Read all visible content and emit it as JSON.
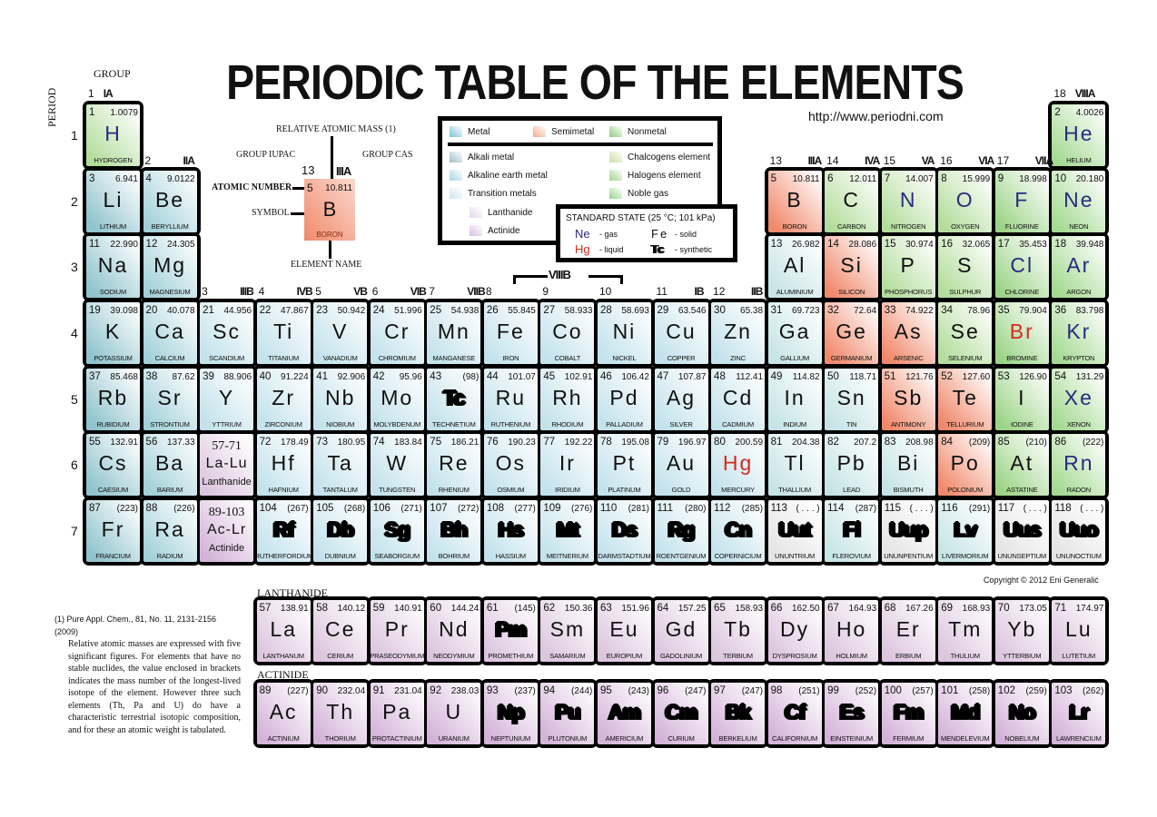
{
  "title": "PERIODIC TABLE OF THE ELEMENTS",
  "url": "http://www.periodni.com",
  "group_heading": "GROUP",
  "period_heading": "PERIOD",
  "periods": [
    "1",
    "2",
    "3",
    "4",
    "5",
    "6",
    "7"
  ],
  "groups": [
    {
      "iupac": "1",
      "cas": "IA"
    },
    {
      "iupac": "2",
      "cas": "IIA"
    },
    {
      "iupac": "3",
      "cas": "IIIB"
    },
    {
      "iupac": "4",
      "cas": "IVB"
    },
    {
      "iupac": "5",
      "cas": "VB"
    },
    {
      "iupac": "6",
      "cas": "VIB"
    },
    {
      "iupac": "7",
      "cas": "VIIB"
    },
    {
      "iupac": "8",
      "cas": ""
    },
    {
      "iupac": "9",
      "cas": ""
    },
    {
      "iupac": "10",
      "cas": ""
    },
    {
      "iupac": "11",
      "cas": "IB"
    },
    {
      "iupac": "12",
      "cas": "IIB"
    },
    {
      "iupac": "13",
      "cas": "IIIA"
    },
    {
      "iupac": "14",
      "cas": "IVA"
    },
    {
      "iupac": "15",
      "cas": "VA"
    },
    {
      "iupac": "16",
      "cas": "VIA"
    },
    {
      "iupac": "17",
      "cas": "VIIA"
    },
    {
      "iupac": "18",
      "cas": "VIIIA"
    }
  ],
  "group_8_10_cas": "VIIIB",
  "key": {
    "mass_label": "RELATIVE ATOMIC MASS (1)",
    "iupac_label": "GROUP IUPAC",
    "cas_label": "GROUP CAS",
    "number_label": "ATOMIC NUMBER",
    "symbol_label": "SYMBOL",
    "name_label": "ELEMENT NAME",
    "sample": {
      "group_iupac": "13",
      "group_cas": "IIIA",
      "number": "5",
      "mass": "10.811",
      "symbol": "B",
      "name": "BORON"
    }
  },
  "legend": {
    "items": [
      {
        "label": "Metal",
        "color": "#7cc3d6"
      },
      {
        "label": "Semimetal",
        "color": "#f4a98e"
      },
      {
        "label": "Nonmetal",
        "color": "#8ccc7a"
      },
      {
        "label": "Alkali metal",
        "color": "#9fbfc9"
      },
      {
        "label": "Alkaline earth metal",
        "color": "#a9d6e2"
      },
      {
        "label": "Transition metals",
        "color": "#cfe6ee"
      },
      {
        "label": "Lanthanide",
        "color": "#e6d6ea"
      },
      {
        "label": "Actinide",
        "color": "#d9bfe0"
      },
      {
        "label": "Chalcogens element",
        "color": "#c9dfa0"
      },
      {
        "label": "Halogens element",
        "color": "#a4d38f"
      },
      {
        "label": "Noble gas",
        "color": "#9bd48c"
      }
    ]
  },
  "standard_state": {
    "title": "STANDARD STATE (25 °C; 101 kPa)",
    "gas_sym": "Ne",
    "gas": "- gas",
    "solid_sym": "Fe",
    "solid": "- solid",
    "liquid_sym": "Hg",
    "liquid": "- liquid",
    "synth_sym": "Tc",
    "synth": "- synthetic"
  },
  "colors": {
    "alk": "#8fc3cd",
    "ae": "#a3d1da",
    "tm": "#c3e2ec",
    "pt": "#c6e4e6",
    "sm": "#f0896b",
    "nm": "#b3dd9c",
    "hal": "#9cd487",
    "nob": "#a5da93",
    "lan": "#dcc5de",
    "act": "#d4b3d9",
    "unk": "#e4e4e4"
  },
  "placeholders": [
    {
      "range": "57-71",
      "symbols": "La-Lu",
      "label": "Lanthanide"
    },
    {
      "range": "89-103",
      "symbols": "Ac-Lr",
      "label": "Actinide"
    }
  ],
  "lanthanide_label": "LANTHANIDE",
  "actinide_label": "ACTINIDE",
  "copyright": "Copyright © 2012 Eni Generalić",
  "footnote": {
    "ref": "(1)",
    "citation": "Pure Appl. Chem., 81, No. 11, 2131-2156 (2009)",
    "text": "Relative atomic masses are expressed with five significant figures. For elements that have no stable nuclides, the value enclosed in brackets indicates the mass number of the longest-lived isotope of the element. However three such elements (Th, Pa and U) do have a characteristic terrestrial isotopic composition, and for these an atomic weight is tabulated."
  },
  "elements": [
    {
      "n": "1",
      "s": "H",
      "name": "HYDROGEN",
      "m": "1.0079",
      "c": "nm",
      "st": "g"
    },
    {
      "n": "2",
      "s": "He",
      "name": "HELIUM",
      "m": "4.0026",
      "c": "nob",
      "st": "g"
    },
    {
      "n": "3",
      "s": "Li",
      "name": "LITHIUM",
      "m": "6.941",
      "c": "alk",
      "st": "s"
    },
    {
      "n": "4",
      "s": "Be",
      "name": "BERYLLIUM",
      "m": "9.0122",
      "c": "ae",
      "st": "s"
    },
    {
      "n": "5",
      "s": "B",
      "name": "BORON",
      "m": "10.811",
      "c": "sm",
      "st": "s"
    },
    {
      "n": "6",
      "s": "C",
      "name": "CARBON",
      "m": "12.011",
      "c": "nm",
      "st": "s"
    },
    {
      "n": "7",
      "s": "N",
      "name": "NITROGEN",
      "m": "14.007",
      "c": "nm",
      "st": "g"
    },
    {
      "n": "8",
      "s": "O",
      "name": "OXYGEN",
      "m": "15.999",
      "c": "nm",
      "st": "g"
    },
    {
      "n": "9",
      "s": "F",
      "name": "FLUORINE",
      "m": "18.998",
      "c": "hal",
      "st": "g"
    },
    {
      "n": "10",
      "s": "Ne",
      "name": "NEON",
      "m": "20.180",
      "c": "nob",
      "st": "g"
    },
    {
      "n": "11",
      "s": "Na",
      "name": "SODIUM",
      "m": "22.990",
      "c": "alk",
      "st": "s"
    },
    {
      "n": "12",
      "s": "Mg",
      "name": "MAGNESIUM",
      "m": "24.305",
      "c": "ae",
      "st": "s"
    },
    {
      "n": "13",
      "s": "Al",
      "name": "ALUMINIUM",
      "m": "26.982",
      "c": "pt",
      "st": "s"
    },
    {
      "n": "14",
      "s": "Si",
      "name": "SILICON",
      "m": "28.086",
      "c": "sm",
      "st": "s"
    },
    {
      "n": "15",
      "s": "P",
      "name": "PHOSPHORUS",
      "m": "30.974",
      "c": "nm",
      "st": "s"
    },
    {
      "n": "16",
      "s": "S",
      "name": "SULPHUR",
      "m": "32.065",
      "c": "nm",
      "st": "s"
    },
    {
      "n": "17",
      "s": "Cl",
      "name": "CHLORINE",
      "m": "35.453",
      "c": "hal",
      "st": "g"
    },
    {
      "n": "18",
      "s": "Ar",
      "name": "ARGON",
      "m": "39.948",
      "c": "nob",
      "st": "g"
    },
    {
      "n": "19",
      "s": "K",
      "name": "POTASSIUM",
      "m": "39.098",
      "c": "alk",
      "st": "s"
    },
    {
      "n": "20",
      "s": "Ca",
      "name": "CALCIUM",
      "m": "40.078",
      "c": "ae",
      "st": "s"
    },
    {
      "n": "21",
      "s": "Sc",
      "name": "SCANDIUM",
      "m": "44.956",
      "c": "tm",
      "st": "s"
    },
    {
      "n": "22",
      "s": "Ti",
      "name": "TITANIUM",
      "m": "47.867",
      "c": "tm",
      "st": "s"
    },
    {
      "n": "23",
      "s": "V",
      "name": "VANADIUM",
      "m": "50.942",
      "c": "tm",
      "st": "s"
    },
    {
      "n": "24",
      "s": "Cr",
      "name": "CHROMIUM",
      "m": "51.996",
      "c": "tm",
      "st": "s"
    },
    {
      "n": "25",
      "s": "Mn",
      "name": "MANGANESE",
      "m": "54.938",
      "c": "tm",
      "st": "s"
    },
    {
      "n": "26",
      "s": "Fe",
      "name": "IRON",
      "m": "55.845",
      "c": "tm",
      "st": "s"
    },
    {
      "n": "27",
      "s": "Co",
      "name": "COBALT",
      "m": "58.933",
      "c": "tm",
      "st": "s"
    },
    {
      "n": "28",
      "s": "Ni",
      "name": "NICKEL",
      "m": "58.693",
      "c": "tm",
      "st": "s"
    },
    {
      "n": "29",
      "s": "Cu",
      "name": "COPPER",
      "m": "63.546",
      "c": "tm",
      "st": "s"
    },
    {
      "n": "30",
      "s": "Zn",
      "name": "ZINC",
      "m": "65.38",
      "c": "tm",
      "st": "s"
    },
    {
      "n": "31",
      "s": "Ga",
      "name": "GALLIUM",
      "m": "69.723",
      "c": "pt",
      "st": "s"
    },
    {
      "n": "32",
      "s": "Ge",
      "name": "GERMANIUM",
      "m": "72.64",
      "c": "sm",
      "st": "s"
    },
    {
      "n": "33",
      "s": "As",
      "name": "ARSENIC",
      "m": "74.922",
      "c": "sm",
      "st": "s"
    },
    {
      "n": "34",
      "s": "Se",
      "name": "SELENIUM",
      "m": "78.96",
      "c": "nm",
      "st": "s"
    },
    {
      "n": "35",
      "s": "Br",
      "name": "BROMINE",
      "m": "79.904",
      "c": "hal",
      "st": "l"
    },
    {
      "n": "36",
      "s": "Kr",
      "name": "KRYPTON",
      "m": "83.798",
      "c": "nob",
      "st": "g"
    },
    {
      "n": "37",
      "s": "Rb",
      "name": "RUBIDIUM",
      "m": "85.468",
      "c": "alk",
      "st": "s"
    },
    {
      "n": "38",
      "s": "Sr",
      "name": "STRONTIUM",
      "m": "87.62",
      "c": "ae",
      "st": "s"
    },
    {
      "n": "39",
      "s": "Y",
      "name": "YTTRIUM",
      "m": "88.906",
      "c": "tm",
      "st": "s"
    },
    {
      "n": "40",
      "s": "Zr",
      "name": "ZIRCONIUM",
      "m": "91.224",
      "c": "tm",
      "st": "s"
    },
    {
      "n": "41",
      "s": "Nb",
      "name": "NIOBIUM",
      "m": "92.906",
      "c": "tm",
      "st": "s"
    },
    {
      "n": "42",
      "s": "Mo",
      "name": "MOLYBDENUM",
      "m": "95.96",
      "c": "tm",
      "st": "s"
    },
    {
      "n": "43",
      "s": "Tc",
      "name": "TECHNETIUM",
      "m": "(98)",
      "c": "tm",
      "st": "x"
    },
    {
      "n": "44",
      "s": "Ru",
      "name": "RUTHENIUM",
      "m": "101.07",
      "c": "tm",
      "st": "s"
    },
    {
      "n": "45",
      "s": "Rh",
      "name": "RHODIUM",
      "m": "102.91",
      "c": "tm",
      "st": "s"
    },
    {
      "n": "46",
      "s": "Pd",
      "name": "PALLADIUM",
      "m": "106.42",
      "c": "tm",
      "st": "s"
    },
    {
      "n": "47",
      "s": "Ag",
      "name": "SILVER",
      "m": "107.87",
      "c": "tm",
      "st": "s"
    },
    {
      "n": "48",
      "s": "Cd",
      "name": "CADMIUM",
      "m": "112.41",
      "c": "tm",
      "st": "s"
    },
    {
      "n": "49",
      "s": "In",
      "name": "INDIUM",
      "m": "114.82",
      "c": "pt",
      "st": "s"
    },
    {
      "n": "50",
      "s": "Sn",
      "name": "TIN",
      "m": "118.71",
      "c": "pt",
      "st": "s"
    },
    {
      "n": "51",
      "s": "Sb",
      "name": "ANTIMONY",
      "m": "121.76",
      "c": "sm",
      "st": "s"
    },
    {
      "n": "52",
      "s": "Te",
      "name": "TELLURIUM",
      "m": "127.60",
      "c": "sm",
      "st": "s"
    },
    {
      "n": "53",
      "s": "I",
      "name": "IODINE",
      "m": "126.90",
      "c": "hal",
      "st": "s"
    },
    {
      "n": "54",
      "s": "Xe",
      "name": "XENON",
      "m": "131.29",
      "c": "nob",
      "st": "g"
    },
    {
      "n": "55",
      "s": "Cs",
      "name": "CAESIUM",
      "m": "132.91",
      "c": "alk",
      "st": "s"
    },
    {
      "n": "56",
      "s": "Ba",
      "name": "BARIUM",
      "m": "137.33",
      "c": "ae",
      "st": "s"
    },
    {
      "n": "57",
      "s": "La",
      "name": "LANTHANUM",
      "m": "138.91",
      "c": "lan",
      "st": "s"
    },
    {
      "n": "58",
      "s": "Ce",
      "name": "CERIUM",
      "m": "140.12",
      "c": "lan",
      "st": "s"
    },
    {
      "n": "59",
      "s": "Pr",
      "name": "PRASEODYMIUM",
      "m": "140.91",
      "c": "lan",
      "st": "s"
    },
    {
      "n": "60",
      "s": "Nd",
      "name": "NEODYMIUM",
      "m": "144.24",
      "c": "lan",
      "st": "s"
    },
    {
      "n": "61",
      "s": "Pm",
      "name": "PROMETHIUM",
      "m": "(145)",
      "c": "lan",
      "st": "x"
    },
    {
      "n": "62",
      "s": "Sm",
      "name": "SAMARIUM",
      "m": "150.36",
      "c": "lan",
      "st": "s"
    },
    {
      "n": "63",
      "s": "Eu",
      "name": "EUROPIUM",
      "m": "151.96",
      "c": "lan",
      "st": "s"
    },
    {
      "n": "64",
      "s": "Gd",
      "name": "GADOLINIUM",
      "m": "157.25",
      "c": "lan",
      "st": "s"
    },
    {
      "n": "65",
      "s": "Tb",
      "name": "TERBIUM",
      "m": "158.93",
      "c": "lan",
      "st": "s"
    },
    {
      "n": "66",
      "s": "Dy",
      "name": "DYSPROSIUM",
      "m": "162.50",
      "c": "lan",
      "st": "s"
    },
    {
      "n": "67",
      "s": "Ho",
      "name": "HOLMIUM",
      "m": "164.93",
      "c": "lan",
      "st": "s"
    },
    {
      "n": "68",
      "s": "Er",
      "name": "ERBIUM",
      "m": "167.26",
      "c": "lan",
      "st": "s"
    },
    {
      "n": "69",
      "s": "Tm",
      "name": "THULIUM",
      "m": "168.93",
      "c": "lan",
      "st": "s"
    },
    {
      "n": "70",
      "s": "Yb",
      "name": "YTTERBIUM",
      "m": "173.05",
      "c": "lan",
      "st": "s"
    },
    {
      "n": "71",
      "s": "Lu",
      "name": "LUTETIUM",
      "m": "174.97",
      "c": "lan",
      "st": "s"
    },
    {
      "n": "72",
      "s": "Hf",
      "name": "HAFNIUM",
      "m": "178.49",
      "c": "tm",
      "st": "s"
    },
    {
      "n": "73",
      "s": "Ta",
      "name": "TANTALUM",
      "m": "180.95",
      "c": "tm",
      "st": "s"
    },
    {
      "n": "74",
      "s": "W",
      "name": "TUNGSTEN",
      "m": "183.84",
      "c": "tm",
      "st": "s"
    },
    {
      "n": "75",
      "s": "Re",
      "name": "RHENIUM",
      "m": "186.21",
      "c": "tm",
      "st": "s"
    },
    {
      "n": "76",
      "s": "Os",
      "name": "OSMIUM",
      "m": "190.23",
      "c": "tm",
      "st": "s"
    },
    {
      "n": "77",
      "s": "Ir",
      "name": "IRIDIUM",
      "m": "192.22",
      "c": "tm",
      "st": "s"
    },
    {
      "n": "78",
      "s": "Pt",
      "name": "PLATINUM",
      "m": "195.08",
      "c": "tm",
      "st": "s"
    },
    {
      "n": "79",
      "s": "Au",
      "name": "GOLD",
      "m": "196.97",
      "c": "tm",
      "st": "s"
    },
    {
      "n": "80",
      "s": "Hg",
      "name": "MERCURY",
      "m": "200.59",
      "c": "tm",
      "st": "l"
    },
    {
      "n": "81",
      "s": "Tl",
      "name": "THALLIUM",
      "m": "204.38",
      "c": "pt",
      "st": "s"
    },
    {
      "n": "82",
      "s": "Pb",
      "name": "LEAD",
      "m": "207.2",
      "c": "pt",
      "st": "s"
    },
    {
      "n": "83",
      "s": "Bi",
      "name": "BISMUTH",
      "m": "208.98",
      "c": "pt",
      "st": "s"
    },
    {
      "n": "84",
      "s": "Po",
      "name": "POLONIUM",
      "m": "(209)",
      "c": "sm",
      "st": "s"
    },
    {
      "n": "85",
      "s": "At",
      "name": "ASTATINE",
      "m": "(210)",
      "c": "hal",
      "st": "s"
    },
    {
      "n": "86",
      "s": "Rn",
      "name": "RADON",
      "m": "(222)",
      "c": "nob",
      "st": "g"
    },
    {
      "n": "87",
      "s": "Fr",
      "name": "FRANCIUM",
      "m": "(223)",
      "c": "alk",
      "st": "s"
    },
    {
      "n": "88",
      "s": "Ra",
      "name": "RADIUM",
      "m": "(226)",
      "c": "ae",
      "st": "s"
    },
    {
      "n": "89",
      "s": "Ac",
      "name": "ACTINIUM",
      "m": "(227)",
      "c": "act",
      "st": "s"
    },
    {
      "n": "90",
      "s": "Th",
      "name": "THORIUM",
      "m": "232.04",
      "c": "act",
      "st": "s"
    },
    {
      "n": "91",
      "s": "Pa",
      "name": "PROTACTINIUM",
      "m": "231.04",
      "c": "act",
      "st": "s"
    },
    {
      "n": "92",
      "s": "U",
      "name": "URANIUM",
      "m": "238.03",
      "c": "act",
      "st": "s"
    },
    {
      "n": "93",
      "s": "Np",
      "name": "NEPTUNIUM",
      "m": "(237)",
      "c": "act",
      "st": "x"
    },
    {
      "n": "94",
      "s": "Pu",
      "name": "PLUTONIUM",
      "m": "(244)",
      "c": "act",
      "st": "x"
    },
    {
      "n": "95",
      "s": "Am",
      "name": "AMERICIUM",
      "m": "(243)",
      "c": "act",
      "st": "x"
    },
    {
      "n": "96",
      "s": "Cm",
      "name": "CURIUM",
      "m": "(247)",
      "c": "act",
      "st": "x"
    },
    {
      "n": "97",
      "s": "Bk",
      "name": "BERKELIUM",
      "m": "(247)",
      "c": "act",
      "st": "x"
    },
    {
      "n": "98",
      "s": "Cf",
      "name": "CALIFORNIUM",
      "m": "(251)",
      "c": "act",
      "st": "x"
    },
    {
      "n": "99",
      "s": "Es",
      "name": "EINSTEINIUM",
      "m": "(252)",
      "c": "act",
      "st": "x"
    },
    {
      "n": "100",
      "s": "Fm",
      "name": "FERMIUM",
      "m": "(257)",
      "c": "act",
      "st": "x"
    },
    {
      "n": "101",
      "s": "Md",
      "name": "MENDELEVIUM",
      "m": "(258)",
      "c": "act",
      "st": "x"
    },
    {
      "n": "102",
      "s": "No",
      "name": "NOBELIUM",
      "m": "(259)",
      "c": "act",
      "st": "x"
    },
    {
      "n": "103",
      "s": "Lr",
      "name": "LAWRENCIUM",
      "m": "(262)",
      "c": "act",
      "st": "x"
    },
    {
      "n": "104",
      "s": "Rf",
      "name": "RUTHERFORDIUM",
      "m": "(267)",
      "c": "tm",
      "st": "x"
    },
    {
      "n": "105",
      "s": "Db",
      "name": "DUBNIUM",
      "m": "(268)",
      "c": "tm",
      "st": "x"
    },
    {
      "n": "106",
      "s": "Sg",
      "name": "SEABORGIUM",
      "m": "(271)",
      "c": "tm",
      "st": "x"
    },
    {
      "n": "107",
      "s": "Bh",
      "name": "BOHRIUM",
      "m": "(272)",
      "c": "tm",
      "st": "x"
    },
    {
      "n": "108",
      "s": "Hs",
      "name": "HASSIUM",
      "m": "(277)",
      "c": "tm",
      "st": "x"
    },
    {
      "n": "109",
      "s": "Mt",
      "name": "MEITNERIUM",
      "m": "(276)",
      "c": "tm",
      "st": "x"
    },
    {
      "n": "110",
      "s": "Ds",
      "name": "DARMSTADTIUM",
      "m": "(281)",
      "c": "tm",
      "st": "x"
    },
    {
      "n": "111",
      "s": "Rg",
      "name": "ROENTGENIUM",
      "m": "(280)",
      "c": "tm",
      "st": "x"
    },
    {
      "n": "112",
      "s": "Cn",
      "name": "COPERNICIUM",
      "m": "(285)",
      "c": "tm",
      "st": "x"
    },
    {
      "n": "113",
      "s": "Uut",
      "name": "UNUNTRIUM",
      "m": "( . . . )",
      "c": "unk",
      "st": "x"
    },
    {
      "n": "114",
      "s": "Fl",
      "name": "FLEROVIUM",
      "m": "(287)",
      "c": "pt",
      "st": "x"
    },
    {
      "n": "115",
      "s": "Uup",
      "name": "UNUNPENTIUM",
      "m": "( . . . )",
      "c": "unk",
      "st": "x"
    },
    {
      "n": "116",
      "s": "Lv",
      "name": "LIVERMORIUM",
      "m": "(291)",
      "c": "pt",
      "st": "x"
    },
    {
      "n": "117",
      "s": "Uus",
      "name": "UNUNSEPTIUM",
      "m": "( . . . )",
      "c": "unk",
      "st": "x"
    },
    {
      "n": "118",
      "s": "Uuo",
      "name": "UNUNOCTIUM",
      "m": "( . . . )",
      "c": "unk",
      "st": "x"
    }
  ]
}
